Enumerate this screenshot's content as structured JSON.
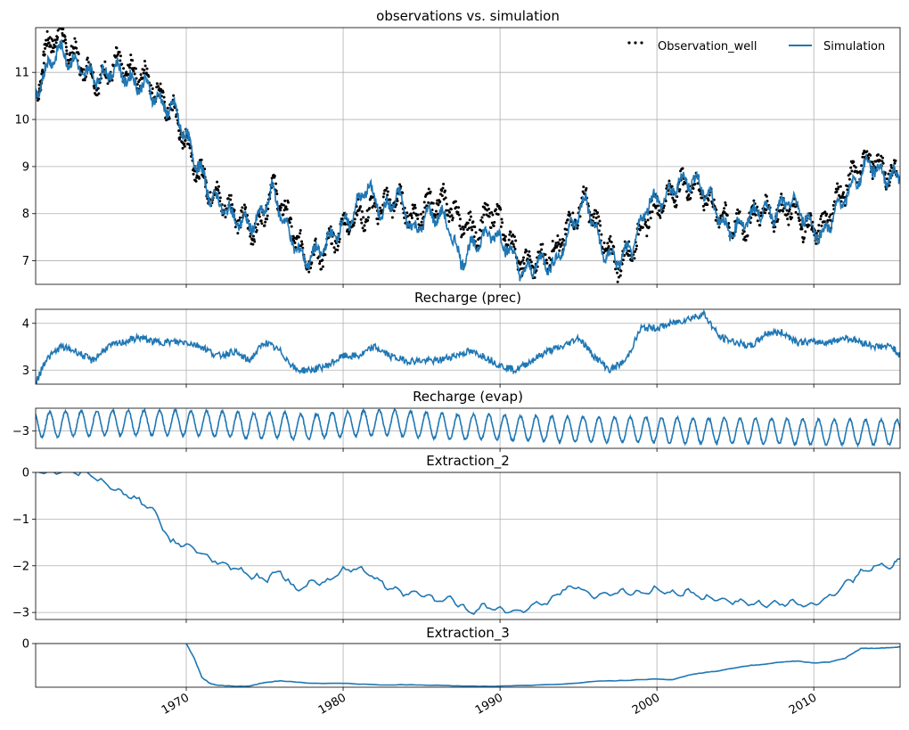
{
  "colors": {
    "simulation": "#1f77b4",
    "observation": "#000000",
    "grid": "#b0b0b0"
  },
  "x_axis": {
    "range": [
      1960.4,
      2015.5
    ],
    "ticks": [
      1970,
      1980,
      1990,
      2000,
      2010
    ],
    "tick_labels": [
      "1970",
      "1980",
      "1990",
      "2000",
      "2010"
    ]
  },
  "chart_data": [
    {
      "type": "line",
      "title": "observations vs. simulation",
      "ylim": [
        6.5,
        11.95
      ],
      "yticks": [
        7,
        8,
        9,
        10,
        11
      ],
      "ytick_labels": [
        "7",
        "8",
        "9",
        "10",
        "11"
      ],
      "grid": true,
      "legend_position": "top-right",
      "series": [
        {
          "name": "Observation_well",
          "style": "dots",
          "x": [
            1960.5,
            1961,
            1961.8,
            1962.5,
            1963.5,
            1964.5,
            1965.5,
            1966.5,
            1967.5,
            1968.5,
            1969.3,
            1970,
            1970.8,
            1971.5,
            1972.5,
            1973.5,
            1974.5,
            1975.5,
            1976.5,
            1977.5,
            1978.5,
            1979.5,
            1980.5,
            1981.5,
            1982.5,
            1983.5,
            1984.5,
            1985.5,
            1986.5,
            1987.5,
            1988.5,
            1989.5,
            1990.5,
            1991.5,
            1992.5,
            1993.5,
            1994.5,
            1995.5,
            1996.5,
            1997.5,
            1998.5,
            1999.5,
            2000.5,
            2001.5,
            2002.5,
            2003.5,
            2004.5,
            2005.5,
            2006.5,
            2007.5,
            2008.5,
            2009.5,
            2010.5,
            2011.5,
            2012.5,
            2013.5,
            2014.5,
            2015.3
          ],
          "y": [
            10.6,
            11.4,
            11.9,
            11.5,
            11.1,
            10.8,
            11.2,
            11.0,
            10.9,
            10.4,
            10.1,
            9.5,
            8.9,
            8.5,
            8.2,
            7.9,
            7.6,
            8.6,
            7.9,
            7.1,
            7.1,
            7.5,
            7.9,
            8.0,
            8.2,
            8.3,
            7.9,
            8.2,
            8.3,
            7.8,
            7.6,
            8.1,
            7.5,
            6.9,
            7.0,
            7.2,
            7.8,
            8.3,
            7.5,
            6.9,
            7.3,
            8.0,
            8.3,
            8.6,
            8.6,
            8.2,
            7.8,
            7.7,
            8.1,
            8.0,
            8.1,
            7.7,
            7.7,
            8.3,
            8.8,
            9.2,
            8.9,
            8.8
          ]
        },
        {
          "name": "Simulation",
          "style": "line",
          "x": [
            1960.4,
            1961,
            1961.8,
            1962.5,
            1963.5,
            1964.5,
            1965.5,
            1966.5,
            1967.5,
            1968.5,
            1969.3,
            1970,
            1970.8,
            1971.5,
            1972.5,
            1973.5,
            1974.5,
            1975.5,
            1976.5,
            1977.5,
            1978.5,
            1979.5,
            1980.5,
            1981.5,
            1982.5,
            1983.5,
            1984.5,
            1985.5,
            1986.5,
            1987.5,
            1988.5,
            1989.5,
            1990.5,
            1991.5,
            1992.5,
            1993.5,
            1994.5,
            1995.5,
            1996.5,
            1997.5,
            1998.5,
            1999.5,
            2000.5,
            2001.5,
            2002.5,
            2003.5,
            2004.5,
            2005.5,
            2006.5,
            2007.5,
            2008.5,
            2009.5,
            2010.5,
            2011.5,
            2012.5,
            2013.5,
            2014.5,
            2015.5
          ],
          "y": [
            10.5,
            11.0,
            11.5,
            11.3,
            11.0,
            10.9,
            11.1,
            10.8,
            10.7,
            10.3,
            10.2,
            9.6,
            9.0,
            8.4,
            8.1,
            7.8,
            7.8,
            8.5,
            7.6,
            7.0,
            7.2,
            7.6,
            7.9,
            8.6,
            8.0,
            8.4,
            7.6,
            8.0,
            7.9,
            7.0,
            7.4,
            7.6,
            7.3,
            6.7,
            7.0,
            6.9,
            7.7,
            8.3,
            7.2,
            7.0,
            7.3,
            8.3,
            8.3,
            8.7,
            8.7,
            8.3,
            7.6,
            7.8,
            8.1,
            8.0,
            8.3,
            7.9,
            7.5,
            8.1,
            8.6,
            9.1,
            8.8,
            8.8
          ]
        }
      ]
    },
    {
      "type": "line",
      "title": "Recharge (prec)",
      "ylim": [
        2.7,
        4.3
      ],
      "yticks": [
        3,
        4
      ],
      "ytick_labels": [
        "3",
        "4"
      ],
      "grid": true,
      "series": [
        {
          "style": "line",
          "x": [
            1960.4,
            1961,
            1962,
            1963,
            1964,
            1965,
            1966,
            1967,
            1968,
            1969,
            1970,
            1971,
            1972,
            1973,
            1974,
            1975,
            1976,
            1977,
            1978,
            1979,
            1980,
            1981,
            1982,
            1983,
            1984,
            1985,
            1986,
            1987,
            1988,
            1989,
            1990,
            1991,
            1992,
            1993,
            1994,
            1995,
            1996,
            1997,
            1998,
            1999,
            2000,
            2001,
            2002,
            2003,
            2004,
            2005,
            2006,
            2007,
            2008,
            2009,
            2010,
            2011,
            2012,
            2013,
            2014,
            2015,
            2015.5
          ],
          "y": [
            2.7,
            3.2,
            3.5,
            3.4,
            3.2,
            3.5,
            3.6,
            3.7,
            3.6,
            3.6,
            3.6,
            3.5,
            3.3,
            3.4,
            3.2,
            3.6,
            3.4,
            3.0,
            3.0,
            3.1,
            3.3,
            3.3,
            3.5,
            3.3,
            3.2,
            3.2,
            3.2,
            3.3,
            3.4,
            3.3,
            3.1,
            3.0,
            3.2,
            3.4,
            3.5,
            3.7,
            3.3,
            3.0,
            3.2,
            3.9,
            3.9,
            4.0,
            4.1,
            4.2,
            3.7,
            3.6,
            3.5,
            3.8,
            3.8,
            3.6,
            3.6,
            3.6,
            3.7,
            3.6,
            3.5,
            3.5,
            3.3
          ]
        }
      ]
    },
    {
      "type": "line",
      "title": "Recharge (evap)",
      "ylim": [
        -3.35,
        -2.55
      ],
      "yticks": [
        -3
      ],
      "ytick_labels": [
        "−3"
      ],
      "grid": true,
      "series": [
        {
          "style": "line",
          "x_start": 1960.4,
          "x_step": 1,
          "peak": -2.62,
          "trough": -3.12,
          "y_annual_mean": [
            -2.87,
            -2.87,
            -2.85,
            -2.85,
            -2.84,
            -2.84,
            -2.84,
            -2.84,
            -2.84,
            -2.85,
            -2.85,
            -2.86,
            -2.87,
            -2.9,
            -2.9,
            -2.88,
            -2.92,
            -2.92,
            -2.88,
            -2.87,
            -2.85,
            -2.84,
            -2.83,
            -2.86,
            -2.88,
            -2.9,
            -2.92,
            -2.93,
            -2.92,
            -2.93,
            -2.95,
            -2.95,
            -2.96,
            -2.97,
            -2.97,
            -2.97,
            -2.98,
            -2.98,
            -2.98,
            -2.98,
            -2.99,
            -3.0,
            -3.0,
            -2.99,
            -3.0,
            -3.0,
            -3.01,
            -3.0,
            -3.02,
            -3.02,
            -3.03,
            -3.02,
            -3.03,
            -3.03,
            -3.03,
            -3.04
          ]
        }
      ]
    },
    {
      "type": "line",
      "title": "Extraction_2",
      "ylim": [
        -3.15,
        0
      ],
      "yticks": [
        0,
        -1,
        -2,
        -3
      ],
      "ytick_labels": [
        "0",
        "−1",
        "−2",
        "−3"
      ],
      "grid": true,
      "series": [
        {
          "style": "line",
          "x": [
            1960.4,
            1962,
            1963.7,
            1965,
            1966,
            1967,
            1968,
            1969,
            1970,
            1971,
            1972,
            1973,
            1974,
            1975,
            1976,
            1977,
            1978,
            1979,
            1980,
            1981,
            1982,
            1983,
            1984,
            1985,
            1986,
            1987,
            1988,
            1989,
            1990,
            1991,
            1992,
            1993,
            1994,
            1995,
            1996,
            1997,
            1998,
            1999,
            2000,
            2001,
            2002,
            2003,
            2004,
            2005,
            2006,
            2007,
            2008,
            2009,
            2010,
            2011,
            2012,
            2013,
            2014,
            2015,
            2015.5
          ],
          "y": [
            0,
            0,
            0,
            -0.3,
            -0.45,
            -0.6,
            -0.85,
            -1.5,
            -1.55,
            -1.75,
            -1.9,
            -2.05,
            -2.2,
            -2.3,
            -2.1,
            -2.55,
            -2.35,
            -2.35,
            -2.1,
            -2.05,
            -2.25,
            -2.5,
            -2.6,
            -2.6,
            -2.75,
            -2.7,
            -3.0,
            -2.85,
            -2.95,
            -3.0,
            -2.85,
            -2.8,
            -2.5,
            -2.45,
            -2.65,
            -2.6,
            -2.55,
            -2.6,
            -2.5,
            -2.6,
            -2.55,
            -2.7,
            -2.7,
            -2.75,
            -2.8,
            -2.85,
            -2.8,
            -2.8,
            -2.85,
            -2.65,
            -2.4,
            -2.15,
            -2.0,
            -2.0,
            -1.85
          ]
        }
      ]
    },
    {
      "type": "line",
      "title": "Extraction_3",
      "ylim": [
        -0.9,
        0
      ],
      "yticks": [
        0
      ],
      "ytick_labels": [
        "0"
      ],
      "grid": true,
      "series": [
        {
          "style": "line",
          "x": [
            1970,
            1970.5,
            1971,
            1971.5,
            1972,
            1973,
            1974,
            1975,
            1976,
            1978,
            1980,
            1982,
            1984,
            1986,
            1988,
            1990,
            1992,
            1994,
            1996,
            1998,
            2000,
            2001,
            2002,
            2003,
            2004,
            2005,
            2006,
            2007,
            2008,
            2009,
            2010,
            2011,
            2012,
            2013,
            2014,
            2015,
            2015.5
          ],
          "y": [
            0,
            -0.3,
            -0.7,
            -0.82,
            -0.86,
            -0.88,
            -0.88,
            -0.8,
            -0.77,
            -0.82,
            -0.82,
            -0.85,
            -0.85,
            -0.86,
            -0.88,
            -0.88,
            -0.86,
            -0.84,
            -0.78,
            -0.76,
            -0.73,
            -0.75,
            -0.65,
            -0.6,
            -0.56,
            -0.5,
            -0.45,
            -0.42,
            -0.38,
            -0.36,
            -0.4,
            -0.38,
            -0.3,
            -0.1,
            -0.1,
            -0.08,
            -0.07
          ]
        }
      ]
    }
  ]
}
